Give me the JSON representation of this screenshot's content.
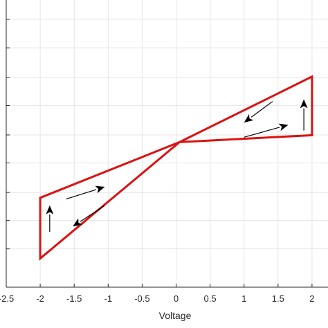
{
  "chart_data": {
    "type": "line",
    "title": "",
    "xlabel": "Voltage",
    "ylabel": "",
    "xlim": [
      -2.5,
      2.0
    ],
    "xticks": [
      -2.5,
      -2,
      -1.5,
      -1,
      -0.5,
      0,
      0.5,
      1,
      1.5,
      2
    ],
    "xtick_labels": [
      "-2.5",
      "-2",
      "-1.5",
      "-1",
      "-0.5",
      "0",
      "0.5",
      "1",
      "1.5",
      "2"
    ],
    "ylim": [
      0,
      1
    ],
    "yticks": [
      0.0,
      0.1333,
      0.2321,
      0.3299,
      0.4327,
      0.5302,
      0.6323,
      0.7311,
      0.8335,
      0.9327
    ],
    "grid": true,
    "series": [
      {
        "color": "#dd1111",
        "x": [
          0.05,
          2.0,
          2.0,
          0.05,
          -2.0,
          -2.0,
          0.05
        ],
        "y": [
          0.505,
          0.7332,
          0.5292,
          0.505,
          0.3114,
          0.1001,
          0.505
        ]
      }
    ],
    "arrows": [
      {
        "x": [
          1.0,
          1.65
        ],
        "y": [
          0.5222,
          0.5652
        ]
      },
      {
        "x": [
          1.42,
          1.0
        ],
        "y": [
          0.6468,
          0.5733
        ]
      },
      {
        "x": [
          1.88,
          1.88
        ],
        "y": [
          0.5454,
          0.6542
        ]
      },
      {
        "x": [
          -1.62,
          -1.05
        ],
        "y": [
          0.3067,
          0.3494
        ]
      },
      {
        "x": [
          -1.05,
          -1.52
        ],
        "y": [
          0.2842,
          0.2116
        ]
      },
      {
        "x": [
          -1.86,
          -1.86
        ],
        "y": [
          0.1925,
          0.2849
        ]
      }
    ],
    "arrow_color": "#000000"
  }
}
